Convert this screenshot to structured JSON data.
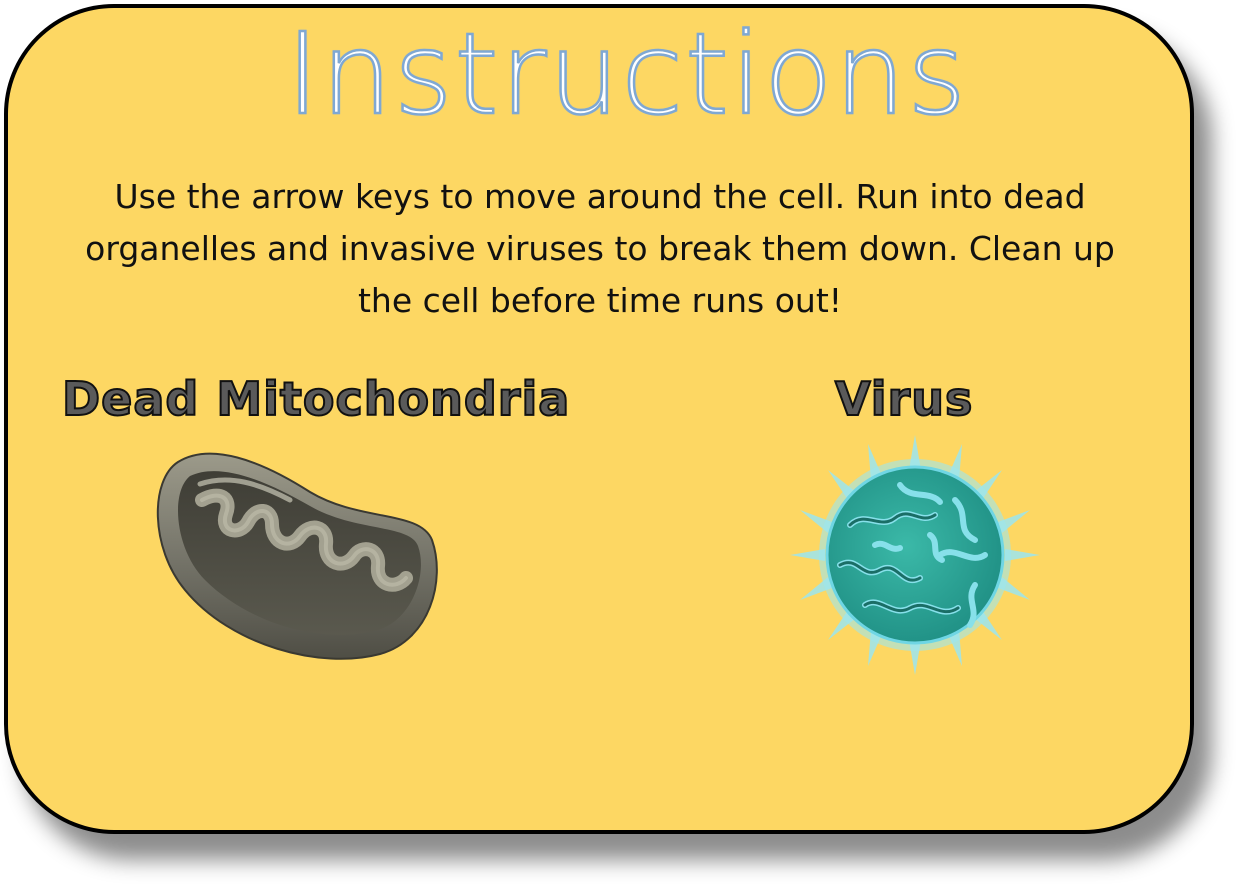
{
  "screen": {
    "title": "Instructions",
    "body": "Use the arrow keys to move around the cell. Run into dead organelles and invasive viruses to break them down. Clean up the cell before time runs out!"
  },
  "targets": [
    {
      "label": "Dead Mitochondria",
      "icon": "dead-mitochondria-icon"
    },
    {
      "label": "Virus",
      "icon": "virus-icon"
    }
  ],
  "colors": {
    "panel_background": "#fdd763",
    "panel_border": "#000000",
    "title_fill": "#ffffff",
    "title_outline": "#7fa8d3",
    "virus_body": "#2fa79a",
    "virus_glow": "#8be4ee",
    "mitochondria_body": "#6b6a5c"
  }
}
